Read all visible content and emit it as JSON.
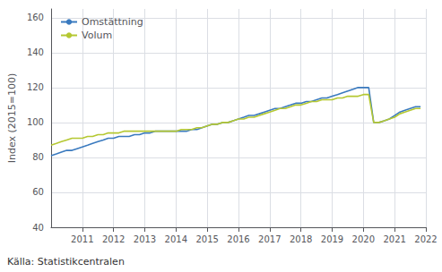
{
  "chart_data": {
    "type": "line",
    "ylabel": "Index (2015=100)",
    "source": "Källa: Statistikcentralen",
    "x": [
      2010.0,
      2010.17,
      2010.33,
      2010.5,
      2010.67,
      2010.83,
      2011.0,
      2011.17,
      2011.33,
      2011.5,
      2011.67,
      2011.83,
      2012.0,
      2012.17,
      2012.33,
      2012.5,
      2012.67,
      2012.83,
      2013.0,
      2013.17,
      2013.33,
      2013.5,
      2013.67,
      2013.83,
      2014.0,
      2014.17,
      2014.33,
      2014.5,
      2014.67,
      2014.83,
      2015.0,
      2015.17,
      2015.33,
      2015.5,
      2015.67,
      2015.83,
      2016.0,
      2016.17,
      2016.33,
      2016.5,
      2016.67,
      2016.83,
      2017.0,
      2017.17,
      2017.33,
      2017.5,
      2017.67,
      2017.83,
      2018.0,
      2018.17,
      2018.33,
      2018.5,
      2018.67,
      2018.83,
      2019.0,
      2019.17,
      2019.33,
      2019.5,
      2019.67,
      2019.83,
      2020.0,
      2020.17,
      2020.33,
      2020.5,
      2020.67,
      2020.83,
      2021.0,
      2021.17,
      2021.33,
      2021.5,
      2021.67,
      2021.83
    ],
    "series": [
      {
        "name": "Omstättning",
        "color": "#3a7abf",
        "values": [
          81,
          82,
          83,
          84,
          84,
          85,
          86,
          87,
          88,
          89,
          90,
          91,
          91,
          92,
          92,
          92,
          93,
          93,
          94,
          94,
          95,
          95,
          95,
          95,
          95,
          95,
          95,
          96,
          96,
          97,
          98,
          99,
          99,
          100,
          100,
          101,
          102,
          103,
          104,
          104,
          105,
          106,
          107,
          108,
          108,
          109,
          110,
          111,
          111,
          112,
          112,
          113,
          114,
          114,
          115,
          116,
          117,
          118,
          119,
          120,
          120,
          120,
          100,
          100,
          101,
          102,
          104,
          106,
          107,
          108,
          109,
          109
        ]
      },
      {
        "name": "Volum",
        "color": "#b5c832",
        "values": [
          87,
          88,
          89,
          90,
          91,
          91,
          91,
          92,
          92,
          93,
          93,
          94,
          94,
          94,
          95,
          95,
          95,
          95,
          95,
          95,
          95,
          95,
          95,
          95,
          95,
          96,
          96,
          96,
          97,
          97,
          98,
          99,
          99,
          100,
          100,
          101,
          102,
          102,
          103,
          103,
          104,
          105,
          106,
          107,
          108,
          108,
          109,
          110,
          110,
          111,
          112,
          112,
          113,
          113,
          113,
          114,
          114,
          115,
          115,
          115,
          116,
          116,
          100,
          100,
          101,
          102,
          103,
          105,
          106,
          107,
          108,
          108
        ]
      }
    ],
    "xlim": [
      2010.0,
      2022.0
    ],
    "xticks": [
      2011,
      2012,
      2013,
      2014,
      2015,
      2016,
      2017,
      2018,
      2019,
      2020,
      2021,
      2022
    ],
    "ylim": [
      40,
      165
    ],
    "yticks": [
      40,
      60,
      80,
      100,
      120,
      140,
      160
    ],
    "grid": true,
    "legend": "upper left"
  }
}
